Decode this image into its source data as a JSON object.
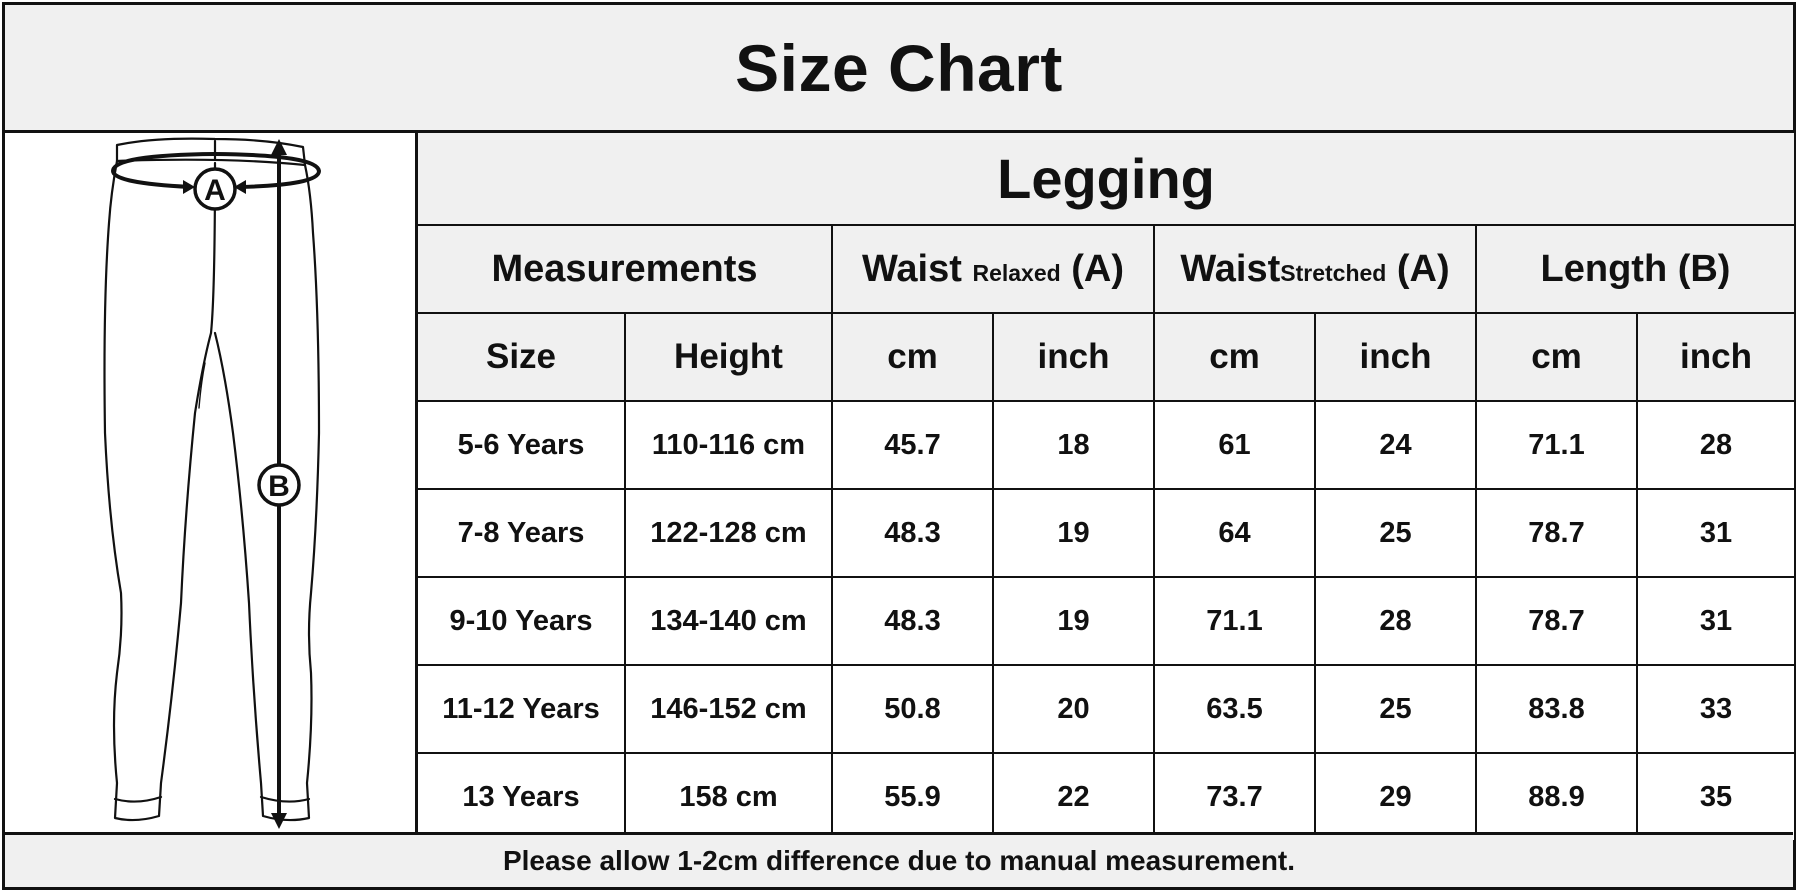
{
  "title": "Size Chart",
  "product": "Legging",
  "diagram": {
    "label_a": "A",
    "label_b": "B"
  },
  "groups": {
    "measurements": "Measurements",
    "waist_relaxed": {
      "main": "Waist",
      "qualifier": "Relaxed",
      "code": "(A)"
    },
    "waist_stretched": {
      "main": "Waist",
      "qualifier": "Stretched",
      "code": "(A)"
    },
    "length": "Length (B)"
  },
  "units": [
    "Size",
    "Height",
    "cm",
    "inch",
    "cm",
    "inch",
    "cm",
    "inch"
  ],
  "rows": [
    [
      "5-6 Years",
      "110-116 cm",
      "45.7",
      "18",
      "61",
      "24",
      "71.1",
      "28"
    ],
    [
      "7-8 Years",
      "122-128 cm",
      "48.3",
      "19",
      "64",
      "25",
      "78.7",
      "31"
    ],
    [
      "9-10 Years",
      "134-140 cm",
      "48.3",
      "19",
      "71.1",
      "28",
      "78.7",
      "31"
    ],
    [
      "11-12 Years",
      "146-152 cm",
      "50.8",
      "20",
      "63.5",
      "25",
      "83.8",
      "33"
    ],
    [
      "13 Years",
      "158 cm",
      "55.9",
      "22",
      "73.7",
      "29",
      "88.9",
      "35"
    ]
  ],
  "note": "Please allow 1-2cm difference due to manual measurement."
}
